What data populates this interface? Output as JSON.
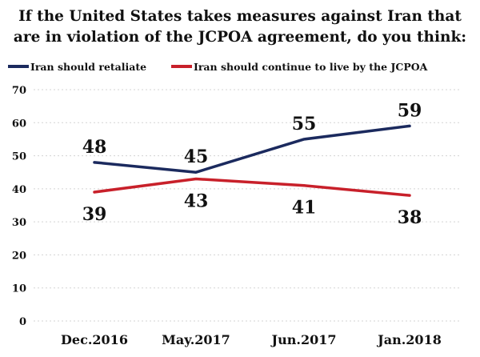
{
  "chart_data": {
    "type": "line",
    "title_lines": [
      "If the United States takes measures against Iran that",
      "are in violation of the JCPOA agreement, do you think:"
    ],
    "categories": [
      "Dec.2016",
      "May.2017",
      "Jun.2017",
      "Jan.2018"
    ],
    "series": [
      {
        "name": "Iran should retaliate",
        "color": "#1b2a5e",
        "values": [
          48,
          45,
          55,
          59
        ],
        "labels": [
          "48",
          "45",
          "55",
          "59"
        ],
        "label_position": "above"
      },
      {
        "name": "Iran should continue to live by the JCPOA",
        "color": "#c8202a",
        "values": [
          39,
          43,
          41,
          38
        ],
        "labels": [
          "39",
          "43",
          "41",
          "38"
        ],
        "label_position": "below"
      }
    ],
    "y_ticks": [
      "0",
      "10",
      "20",
      "30",
      "40",
      "50",
      "60",
      "70"
    ],
    "ylim": [
      0,
      70
    ],
    "grid": true,
    "legend_position": "top-left",
    "xlabel": "",
    "ylabel": ""
  }
}
